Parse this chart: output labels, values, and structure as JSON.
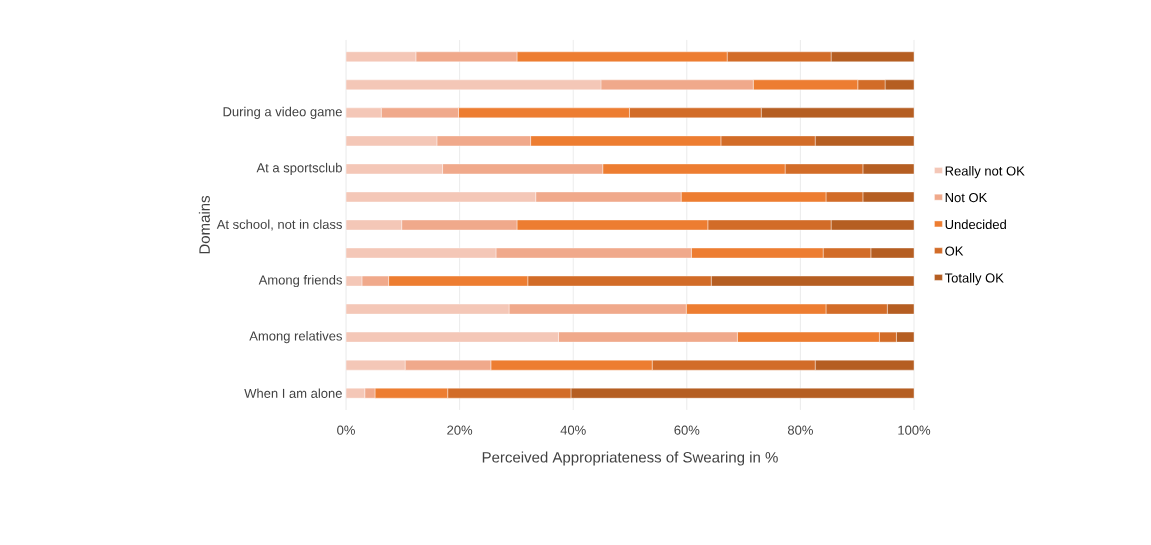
{
  "chart_data": {
    "type": "bar",
    "orientation": "horizontal",
    "stacked": true,
    "categories": [
      null,
      null,
      "During a video game",
      null,
      "At a sportsclub",
      null,
      "At school, not in class",
      null,
      "Among friends",
      null,
      "Among relatives",
      null,
      "When I am alone"
    ],
    "xlabel": "Perceived Appropriateness of Swearing in %",
    "ylabel": "Domains",
    "xlim": [
      0,
      100
    ],
    "xticks": [
      {
        "value": 0,
        "label": "0%"
      },
      {
        "value": 20,
        "label": "20%"
      },
      {
        "value": 40,
        "label": "40%"
      },
      {
        "value": 60,
        "label": "60%"
      },
      {
        "value": 80,
        "label": "80%"
      },
      {
        "value": 100,
        "label": "100%"
      }
    ],
    "grid": "x",
    "legend": "right",
    "series": [
      {
        "name": "Really not OK",
        "color": "#f4c7b7",
        "values": [
          12.3,
          44.9,
          6.2,
          16.0,
          17.0,
          33.4,
          9.8,
          26.4,
          2.8,
          28.7,
          37.4,
          10.4,
          3.3
        ]
      },
      {
        "name": "Not OK",
        "color": "#f0a98b",
        "values": [
          17.8,
          26.8,
          13.6,
          16.5,
          28.2,
          25.6,
          20.3,
          34.4,
          4.7,
          31.2,
          31.5,
          15.1,
          1.8
        ]
      },
      {
        "name": "Undecided",
        "color": "#ed7d31",
        "values": [
          37.0,
          18.4,
          30.1,
          33.5,
          32.1,
          25.5,
          33.6,
          23.2,
          24.5,
          24.6,
          25.0,
          28.4,
          12.8
        ]
      },
      {
        "name": "OK",
        "color": "#d26c28",
        "values": [
          18.3,
          4.8,
          23.2,
          16.6,
          13.7,
          6.5,
          21.7,
          8.4,
          32.3,
          10.8,
          3.0,
          28.7,
          21.7
        ]
      },
      {
        "name": "Totally OK",
        "color": "#b55e22",
        "values": [
          14.6,
          5.1,
          26.9,
          17.4,
          9.0,
          9.0,
          14.6,
          7.6,
          35.7,
          4.7,
          3.1,
          17.4,
          60.4
        ]
      }
    ]
  }
}
